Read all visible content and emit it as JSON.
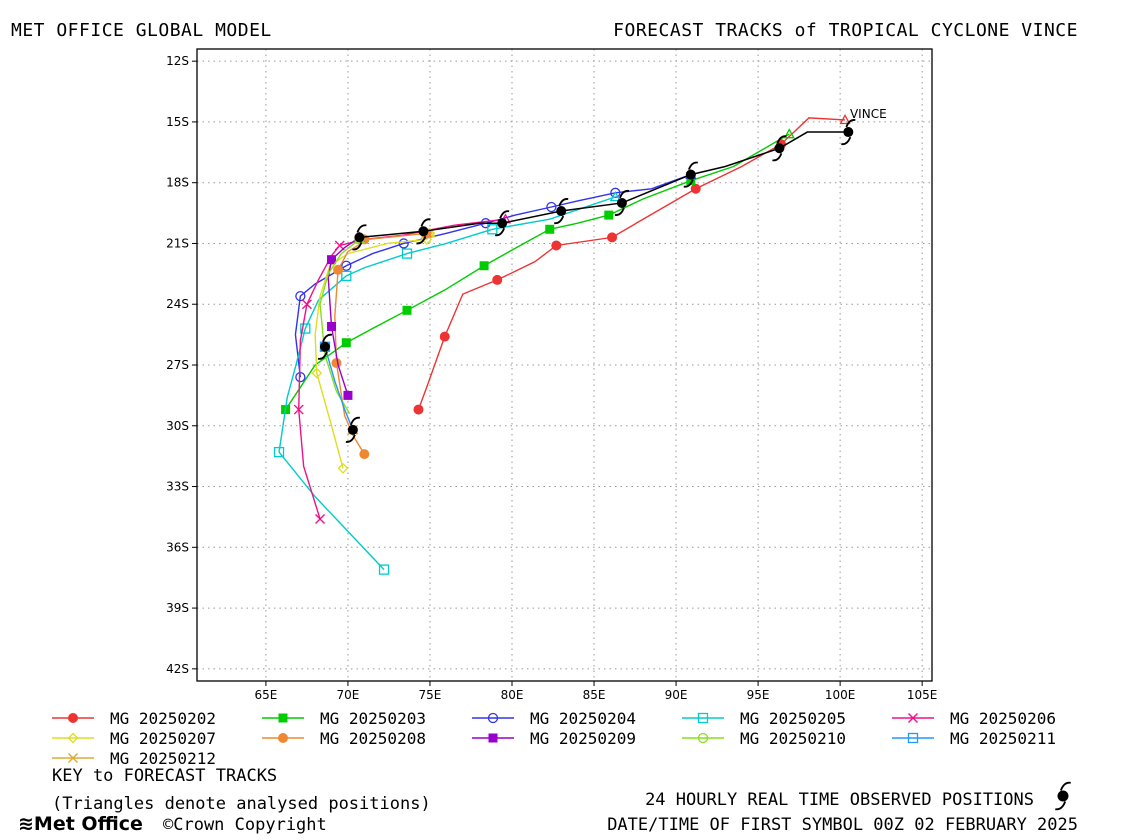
{
  "header": {
    "left": "MET OFFICE GLOBAL MODEL",
    "right": "FORECAST TRACKS of TROPICAL CYCLONE VINCE"
  },
  "footer": {
    "key_title": "KEY to FORECAST TRACKS",
    "key_note": "(Triangles denote analysed positions)",
    "observed": "24 HOURLY REAL TIME OBSERVED POSITIONS",
    "date": "DATE/TIME OF FIRST SYMBOL 00Z 02 FEBRUARY 2025",
    "logo": "Met Office",
    "copyright": "©Crown Copyright"
  },
  "chart_data": {
    "type": "line",
    "storm_label": "VINCE",
    "storm_label_position": [
      100.6,
      14.8
    ],
    "xlim": [
      60.8,
      105.6
    ],
    "ylim": [
      11.4,
      42.6
    ],
    "x_ticks": [
      65,
      70,
      75,
      80,
      85,
      90,
      95,
      100,
      105
    ],
    "x_tick_labels": [
      "65E",
      "70E",
      "75E",
      "80E",
      "85E",
      "90E",
      "95E",
      "100E",
      "105E"
    ],
    "y_ticks": [
      12,
      15,
      18,
      21,
      24,
      27,
      30,
      33,
      36,
      39,
      42
    ],
    "y_tick_labels": [
      "12S",
      "15S",
      "18S",
      "21S",
      "24S",
      "27S",
      "30S",
      "33S",
      "36S",
      "39S",
      "42S"
    ],
    "grid": true,
    "legend": "bottom",
    "observed": {
      "color": "#000000",
      "points": [
        [
          100.5,
          15.5
        ],
        [
          96.3,
          16.3
        ],
        [
          90.9,
          17.6
        ],
        [
          86.7,
          19.0
        ],
        [
          83.0,
          19.4
        ],
        [
          79.4,
          20.0
        ],
        [
          74.6,
          20.4
        ],
        [
          70.7,
          20.7
        ],
        [
          68.6,
          26.1
        ],
        [
          70.3,
          30.2
        ]
      ],
      "line": [
        [
          100.5,
          15.5
        ],
        [
          98.0,
          15.5
        ],
        [
          96.3,
          16.3
        ],
        [
          93.0,
          17.2
        ],
        [
          90.9,
          17.6
        ],
        [
          86.7,
          19.0
        ],
        [
          83.0,
          19.4
        ],
        [
          79.4,
          20.0
        ],
        [
          78.0,
          20.0
        ],
        [
          74.6,
          20.4
        ],
        [
          70.7,
          20.7
        ]
      ]
    },
    "series": [
      {
        "name": "MG 20250202",
        "color": "#ee3333",
        "marker": "filled-circle",
        "path": [
          [
            100.3,
            14.9
          ],
          [
            98.1,
            14.8
          ],
          [
            96.4,
            16.1
          ],
          [
            94.0,
            17.2
          ],
          [
            91.2,
            18.3
          ],
          [
            88.0,
            19.8
          ],
          [
            86.1,
            20.7
          ],
          [
            82.7,
            21.1
          ],
          [
            81.4,
            21.9
          ],
          [
            79.1,
            22.8
          ],
          [
            77.0,
            23.5
          ],
          [
            75.9,
            25.6
          ],
          [
            74.8,
            28.1
          ],
          [
            74.3,
            29.2
          ]
        ],
        "markers": [
          [
            96.4,
            16.1
          ],
          [
            91.2,
            18.3
          ],
          [
            86.1,
            20.7
          ],
          [
            82.7,
            21.1
          ],
          [
            79.1,
            22.8
          ],
          [
            75.9,
            25.6
          ],
          [
            74.3,
            29.2
          ]
        ]
      },
      {
        "name": "MG 20250203",
        "color": "#00cc00",
        "marker": "filled-square",
        "path": [
          [
            96.9,
            15.6
          ],
          [
            93.5,
            17.2
          ],
          [
            90.9,
            17.9
          ],
          [
            88.0,
            18.8
          ],
          [
            85.9,
            19.6
          ],
          [
            84.0,
            20.0
          ],
          [
            82.3,
            20.3
          ],
          [
            80.5,
            21.1
          ],
          [
            78.3,
            22.1
          ],
          [
            75.9,
            23.3
          ],
          [
            73.6,
            24.3
          ],
          [
            71.5,
            25.2
          ],
          [
            69.9,
            25.9
          ],
          [
            68.0,
            27.0
          ],
          [
            66.2,
            29.2
          ]
        ],
        "markers": [
          [
            90.9,
            17.9
          ],
          [
            85.9,
            19.6
          ],
          [
            82.3,
            20.3
          ],
          [
            78.3,
            22.1
          ],
          [
            73.6,
            24.3
          ],
          [
            69.9,
            25.9
          ],
          [
            66.2,
            29.2
          ]
        ]
      },
      {
        "name": "MG 20250204",
        "color": "#3333ee",
        "marker": "open-circle",
        "path": [
          [
            90.9,
            17.6
          ],
          [
            88.5,
            18.3
          ],
          [
            86.3,
            18.5
          ],
          [
            84.0,
            18.9
          ],
          [
            82.4,
            19.2
          ],
          [
            80.2,
            19.6
          ],
          [
            78.4,
            20.0
          ],
          [
            76.0,
            20.5
          ],
          [
            73.4,
            21.0
          ],
          [
            71.5,
            21.5
          ],
          [
            69.9,
            22.1
          ],
          [
            68.0,
            23.0
          ],
          [
            67.1,
            23.6
          ],
          [
            66.8,
            25.5
          ],
          [
            67.1,
            27.6
          ]
        ],
        "markers": [
          [
            86.3,
            18.5
          ],
          [
            82.4,
            19.2
          ],
          [
            78.4,
            20.0
          ],
          [
            73.4,
            21.0
          ],
          [
            69.9,
            22.1
          ],
          [
            67.1,
            23.6
          ],
          [
            67.1,
            27.6
          ]
        ]
      },
      {
        "name": "MG 20250205",
        "color": "#00cccc",
        "marker": "open-square",
        "path": [
          [
            86.3,
            18.7
          ],
          [
            82.3,
            19.8
          ],
          [
            78.8,
            20.3
          ],
          [
            76.0,
            21.0
          ],
          [
            73.6,
            21.5
          ],
          [
            71.0,
            22.2
          ],
          [
            69.9,
            22.6
          ],
          [
            68.2,
            23.8
          ],
          [
            67.4,
            25.2
          ],
          [
            66.8,
            27.1
          ],
          [
            66.3,
            28.6
          ],
          [
            65.8,
            31.3
          ],
          [
            68.0,
            33.5
          ],
          [
            72.2,
            37.1
          ]
        ],
        "markers": [
          [
            78.8,
            20.3
          ],
          [
            73.6,
            21.5
          ],
          [
            69.9,
            22.6
          ],
          [
            67.4,
            25.2
          ],
          [
            65.8,
            31.3
          ],
          [
            72.2,
            37.1
          ]
        ]
      },
      {
        "name": "MG 20250206",
        "color": "#ee1188",
        "marker": "cross",
        "path": [
          [
            79.6,
            19.8
          ],
          [
            76.5,
            20.1
          ],
          [
            73.3,
            20.6
          ],
          [
            71.0,
            20.8
          ],
          [
            69.5,
            21.1
          ],
          [
            69.0,
            21.6
          ],
          [
            68.2,
            22.8
          ],
          [
            67.5,
            24.0
          ],
          [
            67.1,
            25.8
          ],
          [
            67.0,
            29.2
          ],
          [
            67.3,
            32.0
          ],
          [
            68.3,
            34.6
          ]
        ],
        "markers": [
          [
            69.5,
            21.1
          ],
          [
            67.5,
            24.0
          ],
          [
            67.0,
            29.2
          ],
          [
            68.3,
            34.6
          ]
        ]
      },
      {
        "name": "MG 20250207",
        "color": "#dddd22",
        "marker": "open-diamond",
        "path": [
          [
            75.0,
            20.5
          ],
          [
            74.8,
            20.8
          ],
          [
            72.4,
            21.0
          ],
          [
            70.0,
            21.5
          ],
          [
            68.9,
            22.1
          ],
          [
            68.3,
            23.6
          ],
          [
            68.0,
            25.5
          ],
          [
            68.1,
            27.4
          ],
          [
            69.0,
            30.0
          ],
          [
            69.7,
            32.1
          ]
        ],
        "markers": [
          [
            75.0,
            20.5
          ],
          [
            74.8,
            20.8
          ],
          [
            68.1,
            27.4
          ],
          [
            69.7,
            32.1
          ]
        ]
      },
      {
        "name": "MG 20250208",
        "color": "#ee8833",
        "marker": "filled-circle",
        "path": [
          [
            74.8,
            20.5
          ],
          [
            71.2,
            20.8
          ],
          [
            70.0,
            21.4
          ],
          [
            69.4,
            22.3
          ],
          [
            69.2,
            24.6
          ],
          [
            69.3,
            26.9
          ],
          [
            69.8,
            29.5
          ],
          [
            70.4,
            30.6
          ],
          [
            71.0,
            31.4
          ]
        ],
        "markers": [
          [
            74.8,
            20.5
          ],
          [
            71.0,
            20.8
          ],
          [
            69.4,
            22.3
          ],
          [
            69.3,
            26.9
          ],
          [
            71.0,
            31.4
          ]
        ]
      },
      {
        "name": "MG 20250209",
        "color": "#9900cc",
        "marker": "filled-square",
        "path": [
          [
            70.7,
            20.7
          ],
          [
            69.8,
            21.2
          ],
          [
            69.0,
            21.8
          ],
          [
            68.8,
            22.7
          ],
          [
            69.0,
            25.1
          ],
          [
            69.4,
            27.0
          ],
          [
            70.0,
            28.5
          ]
        ],
        "markers": [
          [
            69.0,
            21.8
          ],
          [
            69.0,
            25.1
          ],
          [
            70.0,
            28.5
          ]
        ]
      },
      {
        "name": "MG 20250210",
        "color": "#88dd22",
        "marker": "open-circle",
        "path": [
          [
            70.7,
            20.8
          ],
          [
            69.6,
            21.5
          ],
          [
            68.8,
            22.5
          ],
          [
            68.3,
            24.0
          ],
          [
            68.6,
            26.5
          ],
          [
            69.3,
            28.3
          ],
          [
            70.1,
            29.4
          ]
        ],
        "markers": [
          [
            70.7,
            20.8
          ]
        ]
      },
      {
        "name": "MG 20250211",
        "color": "#2299ff",
        "marker": "open-square",
        "path": [
          [
            68.6,
            26.1
          ],
          [
            69.2,
            27.8
          ],
          [
            69.8,
            29.2
          ],
          [
            70.3,
            30.2
          ]
        ],
        "markers": [
          [
            68.6,
            26.1
          ]
        ]
      },
      {
        "name": "MG 20250212",
        "color": "#ddaa33",
        "marker": "cross",
        "path": [
          [
            70.3,
            30.2
          ],
          [
            70.3,
            30.5
          ]
        ],
        "markers": [
          [
            70.3,
            30.2
          ]
        ]
      }
    ]
  }
}
